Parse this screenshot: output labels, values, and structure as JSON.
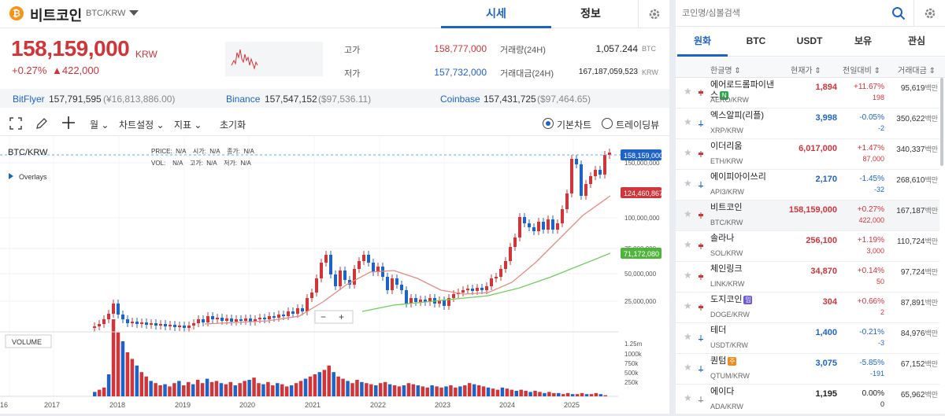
{
  "header": {
    "coin_logo": "₿",
    "coin_name": "비트코인",
    "pair": "BTC/KRW",
    "tab_quote": "시세",
    "tab_info": "정보",
    "accent": "#1e64c8"
  },
  "price": {
    "current": "158,159,000",
    "unit": "KRW",
    "change_rate": "+0.27%",
    "change_amount": "▲422,000",
    "high_label": "고가",
    "high_value": "158,777,000",
    "low_label": "저가",
    "low_value": "157,732,000",
    "volume_label": "거래량(24H)",
    "volume_value": "1,057.244",
    "volume_unit": "BTC",
    "turnover_label": "거래대금(24H)",
    "turnover_value": "167,187,059,523",
    "turnover_unit": "KRW"
  },
  "exchanges": [
    {
      "name": "BitFlyer",
      "price": "157,791,595",
      "krw": "(¥16,813,886.00)"
    },
    {
      "name": "Binance",
      "price": "157,547,152",
      "krw": "($97,536.11)"
    },
    {
      "name": "Coinbase",
      "price": "157,431,725",
      "krw": "($97,464.65)"
    }
  ],
  "toolbar": {
    "period": "월",
    "chart_settings": "차트설정",
    "indicators": "지표",
    "reset": "초기화",
    "basic_chart": "기본차트",
    "tradingview": "트레이딩뷰"
  },
  "chart_data": {
    "type": "candlestick",
    "symbol": "BTC/KRW",
    "legend_price": "PRICE:  N/A    시가:  N/A    종가:  N/A",
    "legend_vol": "VOL:    N/A    고가:  N/A    저가:  N/A",
    "overlays_label": "Overlays",
    "volume_label": "VOLUME",
    "current_price_tag": "158,159,000",
    "ma_red_tag": "124,460,867",
    "ma_green_tag": "71,172,080",
    "y_ticks": [
      "150,000,000",
      "100,000,000",
      "75,000,000",
      "50,000,000",
      "25,000,000"
    ],
    "vol_ticks": [
      "1.25m",
      "1000k",
      "750k",
      "500k",
      "250k"
    ],
    "x_ticks": [
      "16",
      "2017",
      "2018",
      "2019",
      "2020",
      "2021",
      "2022",
      "2023",
      "2024",
      "2025"
    ],
    "zoom_minus": "−",
    "zoom_plus": "+",
    "colors": {
      "up": "#d0353a",
      "down": "#1e64c8",
      "ma1": "#e88a80",
      "ma2": "#6fce5a"
    }
  },
  "right": {
    "search_placeholder": "코인명/심볼검색",
    "tabs": [
      "원화",
      "BTC",
      "USDT",
      "보유",
      "관심"
    ],
    "col_name": "한글명 ⇕",
    "col_price": "현재가 ⇕",
    "col_change": "전일대비 ⇕",
    "col_volume": "거래대금 ⇕",
    "coins": [
      {
        "name": "에어로드롬파이낸스",
        "badge": "N",
        "badge_color": "#2fa84f",
        "sym": "AERO/KRW",
        "price": "1,894",
        "rate": "+11.67%",
        "amt": "198",
        "vol": "95,619",
        "unit": "백만",
        "dir": "up"
      },
      {
        "name": "엑스알피(리플)",
        "badge": "",
        "badge_color": "",
        "sym": "XRP/KRW",
        "price": "3,998",
        "rate": "-0.05%",
        "amt": "-2",
        "vol": "350,622",
        "unit": "백만",
        "dir": "down"
      },
      {
        "name": "이더리움",
        "badge": "",
        "badge_color": "",
        "sym": "ETH/KRW",
        "price": "6,017,000",
        "rate": "+1.47%",
        "amt": "87,000",
        "vol": "340,337",
        "unit": "백만",
        "dir": "up"
      },
      {
        "name": "에이피아이쓰리",
        "badge": "",
        "badge_color": "",
        "sym": "API3/KRW",
        "price": "2,170",
        "rate": "-1.45%",
        "amt": "-32",
        "vol": "268,610",
        "unit": "백만",
        "dir": "down"
      },
      {
        "name": "비트코인",
        "badge": "",
        "badge_color": "",
        "sym": "BTC/KRW",
        "price": "158,159,000",
        "rate": "+0.27%",
        "amt": "422,000",
        "vol": "167,187",
        "unit": "백만",
        "dir": "up"
      },
      {
        "name": "솔라나",
        "badge": "",
        "badge_color": "",
        "sym": "SOL/KRW",
        "price": "256,100",
        "rate": "+1.19%",
        "amt": "3,000",
        "vol": "110,724",
        "unit": "백만",
        "dir": "up"
      },
      {
        "name": "체인링크",
        "badge": "",
        "badge_color": "",
        "sym": "LINK/KRW",
        "price": "34,870",
        "rate": "+0.14%",
        "amt": "50",
        "vol": "97,724",
        "unit": "백만",
        "dir": "up"
      },
      {
        "name": "도지코인",
        "badge": "밈",
        "badge_color": "#6b5bd6",
        "sym": "DOGE/KRW",
        "price": "304",
        "rate": "+0.66%",
        "amt": "2",
        "vol": "87,891",
        "unit": "백만",
        "dir": "up"
      },
      {
        "name": "테더",
        "badge": "",
        "badge_color": "",
        "sym": "USDT/KRW",
        "price": "1,400",
        "rate": "-0.21%",
        "amt": "-3",
        "vol": "84,976",
        "unit": "백만",
        "dir": "down"
      },
      {
        "name": "퀀텀",
        "badge": "주",
        "badge_color": "#f08c1e",
        "sym": "QTUM/KRW",
        "price": "3,075",
        "rate": "-5.85%",
        "amt": "-191",
        "vol": "67,152",
        "unit": "백만",
        "dir": "down"
      },
      {
        "name": "에이다",
        "badge": "",
        "badge_color": "",
        "sym": "ADA/KRW",
        "price": "1,195",
        "rate": "0.00%",
        "amt": "0",
        "vol": "65,962",
        "unit": "백만",
        "dir": "flat"
      }
    ]
  }
}
